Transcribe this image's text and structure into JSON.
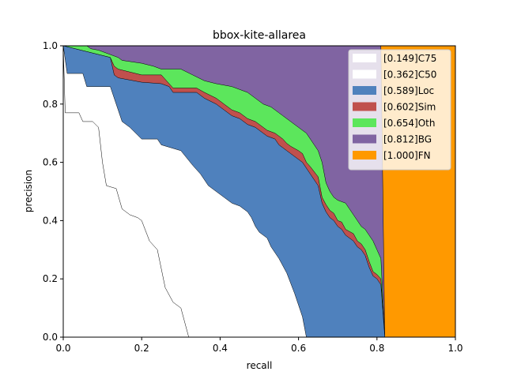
{
  "chart_data": {
    "type": "area",
    "title": "bbox-kite-allarea",
    "xlabel": "recall",
    "ylabel": "precision",
    "xlim": [
      0,
      1
    ],
    "ylim": [
      0,
      1
    ],
    "xticks": [
      "0.0",
      "0.2",
      "0.4",
      "0.6",
      "0.8",
      "1.0"
    ],
    "yticks": [
      "0.0",
      "0.2",
      "0.4",
      "0.6",
      "0.8",
      "1.0"
    ],
    "grid": false,
    "legend_position": "top-right",
    "series": [
      {
        "name": "[0.149]C75",
        "color": "#ffffff",
        "points": [
          [
            0,
            1.0
          ],
          [
            0.005,
            0.77
          ],
          [
            0.04,
            0.77
          ],
          [
            0.05,
            0.74
          ],
          [
            0.075,
            0.74
          ],
          [
            0.09,
            0.72
          ],
          [
            0.1,
            0.6
          ],
          [
            0.11,
            0.52
          ],
          [
            0.135,
            0.51
          ],
          [
            0.15,
            0.44
          ],
          [
            0.17,
            0.42
          ],
          [
            0.19,
            0.41
          ],
          [
            0.2,
            0.4
          ],
          [
            0.22,
            0.33
          ],
          [
            0.24,
            0.3
          ],
          [
            0.26,
            0.17
          ],
          [
            0.28,
            0.12
          ],
          [
            0.3,
            0.1
          ],
          [
            0.32,
            0.0
          ]
        ]
      },
      {
        "name": "[0.362]C50",
        "color": "#ffffff",
        "points": [
          [
            0,
            1.0
          ],
          [
            0.01,
            0.905
          ],
          [
            0.05,
            0.905
          ],
          [
            0.06,
            0.86
          ],
          [
            0.12,
            0.86
          ],
          [
            0.14,
            0.78
          ],
          [
            0.15,
            0.74
          ],
          [
            0.17,
            0.72
          ],
          [
            0.2,
            0.68
          ],
          [
            0.24,
            0.68
          ],
          [
            0.25,
            0.66
          ],
          [
            0.3,
            0.64
          ],
          [
            0.33,
            0.59
          ],
          [
            0.35,
            0.56
          ],
          [
            0.37,
            0.52
          ],
          [
            0.39,
            0.5
          ],
          [
            0.41,
            0.48
          ],
          [
            0.43,
            0.46
          ],
          [
            0.45,
            0.45
          ],
          [
            0.47,
            0.43
          ],
          [
            0.48,
            0.41
          ],
          [
            0.49,
            0.38
          ],
          [
            0.5,
            0.36
          ],
          [
            0.52,
            0.34
          ],
          [
            0.53,
            0.31
          ],
          [
            0.55,
            0.27
          ],
          [
            0.57,
            0.22
          ],
          [
            0.59,
            0.15
          ],
          [
            0.6,
            0.11
          ],
          [
            0.61,
            0.07
          ],
          [
            0.62,
            0.0
          ]
        ]
      },
      {
        "name": "[0.589]Loc",
        "color": "#4f81bd",
        "points": [
          [
            0,
            1.0
          ],
          [
            0.06,
            0.98
          ],
          [
            0.12,
            0.96
          ],
          [
            0.13,
            0.9
          ],
          [
            0.14,
            0.89
          ],
          [
            0.2,
            0.875
          ],
          [
            0.25,
            0.87
          ],
          [
            0.27,
            0.86
          ],
          [
            0.28,
            0.84
          ],
          [
            0.34,
            0.84
          ],
          [
            0.36,
            0.82
          ],
          [
            0.39,
            0.8
          ],
          [
            0.41,
            0.78
          ],
          [
            0.43,
            0.76
          ],
          [
            0.45,
            0.75
          ],
          [
            0.47,
            0.73
          ],
          [
            0.49,
            0.72
          ],
          [
            0.51,
            0.7
          ],
          [
            0.52,
            0.69
          ],
          [
            0.54,
            0.68
          ],
          [
            0.55,
            0.66
          ],
          [
            0.56,
            0.65
          ],
          [
            0.57,
            0.64
          ],
          [
            0.58,
            0.63
          ],
          [
            0.6,
            0.61
          ],
          [
            0.61,
            0.6
          ],
          [
            0.62,
            0.58
          ],
          [
            0.63,
            0.56
          ],
          [
            0.65,
            0.52
          ],
          [
            0.66,
            0.46
          ],
          [
            0.67,
            0.43
          ],
          [
            0.68,
            0.41
          ],
          [
            0.69,
            0.4
          ],
          [
            0.7,
            0.38
          ],
          [
            0.71,
            0.37
          ],
          [
            0.72,
            0.35
          ],
          [
            0.74,
            0.33
          ],
          [
            0.75,
            0.31
          ],
          [
            0.76,
            0.3
          ],
          [
            0.77,
            0.28
          ],
          [
            0.78,
            0.24
          ],
          [
            0.79,
            0.21
          ],
          [
            0.8,
            0.2
          ],
          [
            0.81,
            0.18
          ],
          [
            0.82,
            0.0
          ]
        ]
      },
      {
        "name": "[0.602]Sim",
        "color": "#c0504d",
        "points": [
          [
            0,
            1.0
          ],
          [
            0.06,
            0.98
          ],
          [
            0.12,
            0.96
          ],
          [
            0.13,
            0.93
          ],
          [
            0.14,
            0.92
          ],
          [
            0.2,
            0.9
          ],
          [
            0.25,
            0.9
          ],
          [
            0.27,
            0.87
          ],
          [
            0.28,
            0.855
          ],
          [
            0.34,
            0.855
          ],
          [
            0.36,
            0.84
          ],
          [
            0.39,
            0.82
          ],
          [
            0.41,
            0.8
          ],
          [
            0.43,
            0.78
          ],
          [
            0.45,
            0.77
          ],
          [
            0.47,
            0.75
          ],
          [
            0.49,
            0.74
          ],
          [
            0.51,
            0.72
          ],
          [
            0.52,
            0.71
          ],
          [
            0.54,
            0.7
          ],
          [
            0.55,
            0.69
          ],
          [
            0.56,
            0.68
          ],
          [
            0.57,
            0.665
          ],
          [
            0.58,
            0.655
          ],
          [
            0.6,
            0.64
          ],
          [
            0.61,
            0.63
          ],
          [
            0.62,
            0.6
          ],
          [
            0.63,
            0.585
          ],
          [
            0.65,
            0.55
          ],
          [
            0.66,
            0.48
          ],
          [
            0.67,
            0.455
          ],
          [
            0.68,
            0.435
          ],
          [
            0.69,
            0.425
          ],
          [
            0.7,
            0.4
          ],
          [
            0.71,
            0.395
          ],
          [
            0.72,
            0.37
          ],
          [
            0.74,
            0.355
          ],
          [
            0.75,
            0.33
          ],
          [
            0.76,
            0.32
          ],
          [
            0.77,
            0.3
          ],
          [
            0.78,
            0.26
          ],
          [
            0.79,
            0.225
          ],
          [
            0.8,
            0.215
          ],
          [
            0.81,
            0.2
          ],
          [
            0.82,
            0.0
          ]
        ]
      },
      {
        "name": "[0.654]Oth",
        "color": "#5ce65c",
        "points": [
          [
            0,
            1.0
          ],
          [
            0.06,
            1.0
          ],
          [
            0.07,
            0.99
          ],
          [
            0.09,
            0.985
          ],
          [
            0.1,
            0.98
          ],
          [
            0.14,
            0.96
          ],
          [
            0.15,
            0.95
          ],
          [
            0.2,
            0.94
          ],
          [
            0.23,
            0.93
          ],
          [
            0.25,
            0.92
          ],
          [
            0.3,
            0.92
          ],
          [
            0.33,
            0.9
          ],
          [
            0.36,
            0.88
          ],
          [
            0.39,
            0.87
          ],
          [
            0.43,
            0.86
          ],
          [
            0.45,
            0.85
          ],
          [
            0.47,
            0.84
          ],
          [
            0.49,
            0.82
          ],
          [
            0.51,
            0.8
          ],
          [
            0.53,
            0.79
          ],
          [
            0.55,
            0.77
          ],
          [
            0.56,
            0.76
          ],
          [
            0.58,
            0.74
          ],
          [
            0.6,
            0.72
          ],
          [
            0.62,
            0.7
          ],
          [
            0.63,
            0.68
          ],
          [
            0.64,
            0.66
          ],
          [
            0.65,
            0.64
          ],
          [
            0.66,
            0.6
          ],
          [
            0.67,
            0.53
          ],
          [
            0.68,
            0.5
          ],
          [
            0.69,
            0.48
          ],
          [
            0.7,
            0.47
          ],
          [
            0.72,
            0.46
          ],
          [
            0.73,
            0.44
          ],
          [
            0.74,
            0.42
          ],
          [
            0.75,
            0.4
          ],
          [
            0.76,
            0.38
          ],
          [
            0.77,
            0.37
          ],
          [
            0.78,
            0.35
          ],
          [
            0.79,
            0.33
          ],
          [
            0.8,
            0.3
          ],
          [
            0.81,
            0.27
          ],
          [
            0.82,
            0.0
          ]
        ]
      },
      {
        "name": "[0.812]BG",
        "color": "#8064a2",
        "points": [
          [
            0,
            1.0
          ],
          [
            0.81,
            1.0
          ],
          [
            0.82,
            0.0
          ]
        ]
      },
      {
        "name": "[1.000]FN",
        "color": "#ff9900",
        "points": [
          [
            0,
            1.0
          ],
          [
            1.0,
            1.0
          ],
          [
            1.0,
            0.0
          ]
        ]
      }
    ]
  }
}
